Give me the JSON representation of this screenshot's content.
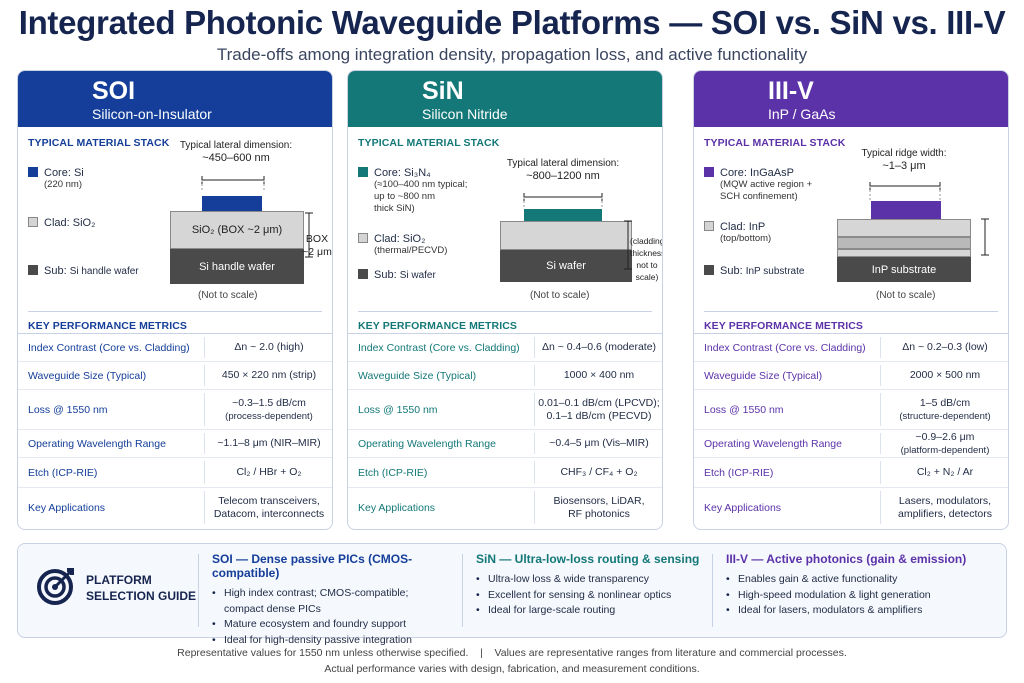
{
  "title": "Integrated Photonic Waveguide Platforms — SOI vs. SiN vs. III-V",
  "subtitle": "Trade-offs among integration density, propagation loss, and active functionality",
  "colors": {
    "soi": "#143e99",
    "sin": "#137877",
    "iii_v": "#5b32a8",
    "navy": "#16254f"
  },
  "labels": {
    "stack_heading": "TYPICAL MATERIAL STACK",
    "metrics_heading": "KEY PERFORMANCE METRICS",
    "not_to_scale": "(Not to scale)"
  },
  "platforms": [
    {
      "name": "SOI",
      "full_name": "Silicon-on-Insulator",
      "core_label": "Core: Si",
      "core_note": "(220 nm)",
      "clad_label": "Clad: SiO₂",
      "clad_note": "",
      "sub_label": "Sub:",
      "sub_value": "Si handle wafer",
      "dim_label": "Typical lateral dimension:",
      "dim_value": "~450–600 nm",
      "clad_layer": "SiO₂ (BOX ~2 μm)",
      "sub_layer": "Si handle wafer",
      "side_note": "BOX\n~2 μm",
      "metrics": [
        {
          "key": "Index Contrast (Core vs. Cladding)",
          "value": "Δn ~ 2.0 (high)",
          "note": ""
        },
        {
          "key": "Waveguide Size (Typical)",
          "value": "450 × 220 nm (strip)",
          "note": ""
        },
        {
          "key": "Loss @ 1550 nm",
          "value": "~0.3–1.5 dB/cm",
          "note": "(process-dependent)"
        },
        {
          "key": "Operating Wavelength Range",
          "value": "~1.1–8 μm (NIR–MIR)",
          "note": ""
        },
        {
          "key": "Etch (ICP-RIE)",
          "value": "Cl₂ / HBr + O₂",
          "note": ""
        },
        {
          "key": "Key Applications",
          "value": "Telecom transceivers,",
          "note": "Datacom, interconnects"
        }
      ]
    },
    {
      "name": "SiN",
      "full_name": "Silicon Nitride",
      "core_label": "Core: Si₃N₄",
      "core_note": "(≈100–400 nm typical;\nup to ~800 nm\nthick SiN)",
      "clad_label": "Clad: SiO₂",
      "clad_note": "(thermal/PECVD)",
      "sub_label": "Sub:",
      "sub_value": "Si wafer",
      "dim_label": "Typical lateral dimension:",
      "dim_value": "~800–1200 nm",
      "clad_layer": "",
      "sub_layer": "Si wafer",
      "side_note": "(cladding\nthickness\nnot to scale)",
      "metrics": [
        {
          "key": "Index Contrast (Core vs. Cladding)",
          "value": "Δn ~ 0.4–0.6 (moderate)",
          "note": ""
        },
        {
          "key": "Waveguide Size (Typical)",
          "value": "1000 × 400 nm",
          "note": ""
        },
        {
          "key": "Loss @ 1550 nm",
          "value": "0.01–0.1 dB/cm (LPCVD);",
          "note": "0.1–1 dB/cm (PECVD)"
        },
        {
          "key": "Operating Wavelength Range",
          "value": "~0.4–5 μm (Vis–MIR)",
          "note": ""
        },
        {
          "key": "Etch (ICP-RIE)",
          "value": "CHF₃ / CF₄ + O₂",
          "note": ""
        },
        {
          "key": "Key Applications",
          "value": "Biosensors, LiDAR,",
          "note": "RF photonics"
        }
      ]
    },
    {
      "name": "III-V",
      "full_name": "InP / GaAs",
      "core_label": "Core: InGaAsP",
      "core_note": "(MQW active region +\nSCH confinement)",
      "clad_label": "Clad: InP",
      "clad_note": "(top/bottom)",
      "sub_label": "Sub:",
      "sub_value": "InP substrate",
      "dim_label": "Typical ridge width:",
      "dim_value": "~1–3 μm",
      "clad_layer": "",
      "sub_layer": "InP substrate",
      "side_note": "",
      "metrics": [
        {
          "key": "Index Contrast (Core vs. Cladding)",
          "value": "Δn ~ 0.2–0.3 (low)",
          "note": ""
        },
        {
          "key": "Waveguide Size (Typical)",
          "value": "2000 × 500 nm",
          "note": ""
        },
        {
          "key": "Loss @ 1550 nm",
          "value": "1–5 dB/cm",
          "note": "(structure-dependent)"
        },
        {
          "key": "Operating Wavelength Range",
          "value": "~0.9–2.6 μm",
          "note": "(platform-dependent)"
        },
        {
          "key": "Etch (ICP-RIE)",
          "value": "Cl₂ + N₂ / Ar",
          "note": ""
        },
        {
          "key": "Key Applications",
          "value": "Lasers, modulators,",
          "note": "amplifiers, detectors"
        }
      ]
    }
  ],
  "guide": {
    "title_line1": "PLATFORM",
    "title_line2": "SELECTION GUIDE",
    "columns": [
      {
        "heading": "SOI — Dense passive PICs (CMOS-compatible)",
        "items": [
          "High index contrast; CMOS-compatible;",
          "compact dense PICs",
          "Mature ecosystem and foundry support",
          "Ideal for high-density passive integration"
        ]
      },
      {
        "heading": "SiN — Ultra-low-loss routing & sensing",
        "items": [
          "Ultra-low loss & wide transparency",
          "Excellent for sensing & nonlinear optics",
          "Ideal for large-scale routing"
        ]
      },
      {
        "heading": "III-V — Active photonics (gain & emission)",
        "items": [
          "Enables gain & active functionality",
          "High-speed modulation & light generation",
          "Ideal for lasers, modulators & amplifiers"
        ]
      }
    ]
  },
  "footer": {
    "line1_left": "Representative values for 1550 nm unless otherwise specified.",
    "line1_sep": "|",
    "line1_right": "Values are representative ranges from literature and commercial processes.",
    "line2": "Actual performance varies with design, fabrication, and measurement conditions."
  }
}
